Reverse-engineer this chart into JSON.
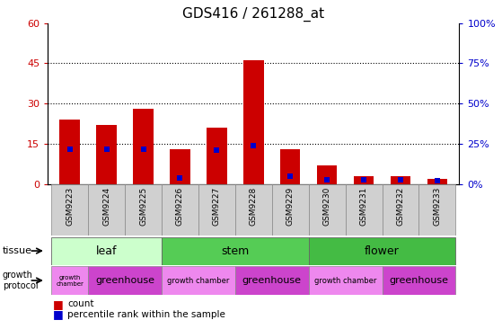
{
  "title": "GDS416 / 261288_at",
  "samples": [
    "GSM9223",
    "GSM9224",
    "GSM9225",
    "GSM9226",
    "GSM9227",
    "GSM9228",
    "GSM9229",
    "GSM9230",
    "GSM9231",
    "GSM9232",
    "GSM9233"
  ],
  "counts": [
    24,
    22,
    28,
    13,
    21,
    46,
    13,
    7,
    3,
    3,
    2
  ],
  "percentile_ranks": [
    22,
    22,
    22,
    4,
    21,
    24,
    5,
    3,
    3,
    3,
    2
  ],
  "tissue_groups": [
    {
      "label": "leaf",
      "start": 0,
      "end": 3,
      "color": "#ccffcc"
    },
    {
      "label": "stem",
      "start": 3,
      "end": 7,
      "color": "#55cc55"
    },
    {
      "label": "flower",
      "start": 7,
      "end": 11,
      "color": "#44bb44"
    }
  ],
  "growth_protocol_groups": [
    {
      "label": "growth\nchamber",
      "start": 0,
      "end": 1,
      "color": "#ee88ee",
      "fontsize": 5
    },
    {
      "label": "greenhouse",
      "start": 1,
      "end": 3,
      "color": "#cc44cc",
      "fontsize": 8
    },
    {
      "label": "growth chamber",
      "start": 3,
      "end": 5,
      "color": "#ee88ee",
      "fontsize": 6
    },
    {
      "label": "greenhouse",
      "start": 5,
      "end": 7,
      "color": "#cc44cc",
      "fontsize": 8
    },
    {
      "label": "growth chamber",
      "start": 7,
      "end": 9,
      "color": "#ee88ee",
      "fontsize": 6
    },
    {
      "label": "greenhouse",
      "start": 9,
      "end": 11,
      "color": "#cc44cc",
      "fontsize": 8
    }
  ],
  "ylim_left": [
    0,
    60
  ],
  "yticks_left": [
    0,
    15,
    30,
    45,
    60
  ],
  "ylim_right": [
    0,
    100
  ],
  "yticks_right": [
    0,
    25,
    50,
    75,
    100
  ],
  "bar_color": "#cc0000",
  "percentile_color": "#0000cc",
  "background_color": "#ffffff",
  "grid_color": "#000000",
  "title_fontsize": 11,
  "bar_width": 0.55
}
